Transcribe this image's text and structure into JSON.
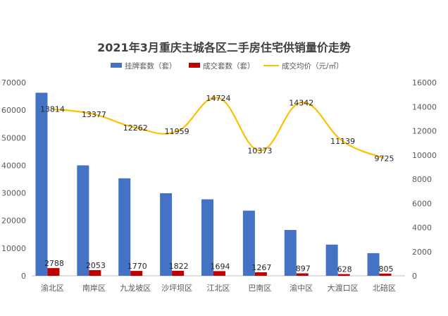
{
  "chart_data": {
    "type": "bar",
    "title": "2021年3月重庆主城各区二手房住宅供销量价走势",
    "categories": [
      "渝北区",
      "南岸区",
      "九龙坡区",
      "沙坪坝区",
      "江北区",
      "巴南区",
      "渝中区",
      "大渡口区",
      "北碚区"
    ],
    "series": [
      {
        "name": "挂牌套数（套）",
        "type": "bar",
        "axis": "left",
        "color": "#4472C4",
        "values": [
          66300,
          40000,
          35300,
          29900,
          27700,
          23600,
          16600,
          11300,
          8200
        ]
      },
      {
        "name": "成交套数（套）",
        "type": "bar",
        "axis": "left",
        "color": "#C00000",
        "values": [
          2788,
          2053,
          1770,
          1822,
          1694,
          1267,
          897,
          628,
          805
        ]
      },
      {
        "name": "成交均价（元/㎡）",
        "type": "line",
        "axis": "right",
        "color": "#FFC000",
        "values": [
          13814,
          13377,
          12262,
          11959,
          14724,
          10373,
          14342,
          11139,
          9725
        ]
      }
    ],
    "y_left": {
      "min": 0,
      "max": 70000,
      "ticks": [
        0,
        10000,
        20000,
        30000,
        40000,
        50000,
        60000,
        70000
      ]
    },
    "y_right": {
      "min": 0,
      "max": 16000,
      "ticks": [
        0,
        2000,
        4000,
        6000,
        8000,
        10000,
        12000,
        14000,
        16000
      ]
    },
    "legend": "top",
    "grid": false
  }
}
